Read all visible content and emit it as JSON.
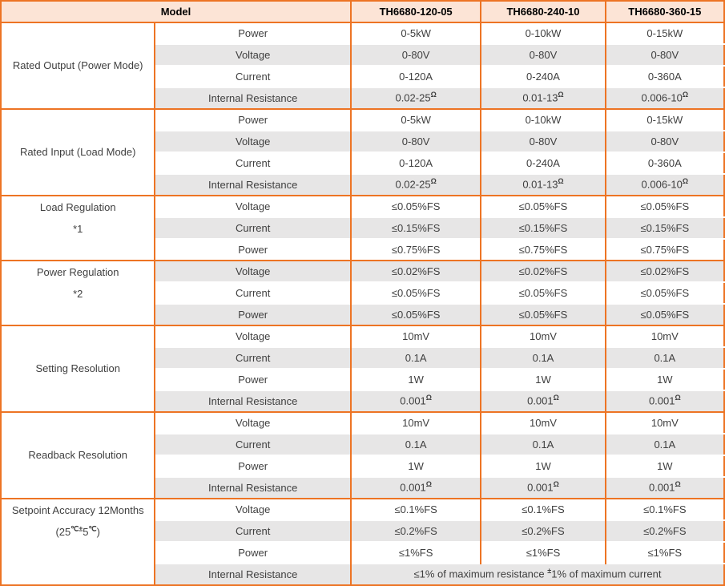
{
  "colors": {
    "border_orange": "#ed7424",
    "header_bg": "#fce4d6",
    "alt_row_bg": "#e7e6e6",
    "body_text": "#3f3f3f",
    "header_text": "#000000"
  },
  "table": {
    "header": {
      "model_label": "Model",
      "columns": [
        "TH6680-120-05",
        "TH6680-240-10",
        "TH6680-360-15"
      ]
    },
    "groups": [
      {
        "label_lines": [
          "Rated Output (Power Mode)"
        ],
        "valign": "middle",
        "rows": [
          {
            "param": "Power",
            "values": [
              "0-5kW",
              "0-10kW",
              "0-15kW"
            ]
          },
          {
            "param": "Voltage",
            "values": [
              "0-80V",
              "0-80V",
              "0-80V"
            ]
          },
          {
            "param": "Current",
            "values": [
              "0-120A",
              "0-240A",
              "0-360A"
            ]
          },
          {
            "param": "Internal Resistance",
            "values": [
              "0.02-25^{Ω}",
              "0.01-13^{Ω}",
              "0.006-10^{Ω}"
            ]
          }
        ]
      },
      {
        "label_lines": [
          "Rated Input (Load Mode)"
        ],
        "valign": "middle",
        "rows": [
          {
            "param": "Power",
            "values": [
              "0-5kW",
              "0-10kW",
              "0-15kW"
            ]
          },
          {
            "param": "Voltage",
            "values": [
              "0-80V",
              "0-80V",
              "0-80V"
            ]
          },
          {
            "param": "Current",
            "values": [
              "0-120A",
              "0-240A",
              "0-360A"
            ]
          },
          {
            "param": "Internal Resistance",
            "values": [
              "0.02-25^{Ω}",
              "0.01-13^{Ω}",
              "0.006-10^{Ω}"
            ]
          }
        ]
      },
      {
        "label_lines": [
          "Load Regulation",
          "*1"
        ],
        "valign": "top",
        "rows": [
          {
            "param": "Voltage",
            "values": [
              "≤0.05%FS",
              "≤0.05%FS",
              "≤0.05%FS"
            ]
          },
          {
            "param": "Current",
            "values": [
              "≤0.15%FS",
              "≤0.15%FS",
              "≤0.15%FS"
            ]
          },
          {
            "param": "Power",
            "values": [
              "≤0.75%FS",
              "≤0.75%FS",
              "≤0.75%FS"
            ]
          }
        ]
      },
      {
        "label_lines": [
          "Power Regulation",
          "*2"
        ],
        "valign": "top",
        "rows": [
          {
            "param": "Voltage",
            "values": [
              "≤0.02%FS",
              "≤0.02%FS",
              "≤0.02%FS"
            ]
          },
          {
            "param": "Current",
            "values": [
              "≤0.05%FS",
              "≤0.05%FS",
              "≤0.05%FS"
            ]
          },
          {
            "param": "Power",
            "values": [
              "≤0.05%FS",
              "≤0.05%FS",
              "≤0.05%FS"
            ]
          }
        ]
      },
      {
        "label_lines": [
          "Setting Resolution"
        ],
        "valign": "middle",
        "rows": [
          {
            "param": "Voltage",
            "values": [
              "10mV",
              "10mV",
              "10mV"
            ]
          },
          {
            "param": "Current",
            "values": [
              "0.1A",
              "0.1A",
              "0.1A"
            ]
          },
          {
            "param": "Power",
            "values": [
              "1W",
              "1W",
              "1W"
            ]
          },
          {
            "param": "Internal Resistance",
            "values": [
              "0.001^{Ω}",
              "0.001^{Ω}",
              "0.001^{Ω}"
            ]
          }
        ]
      },
      {
        "label_lines": [
          "Readback Resolution"
        ],
        "valign": "middle",
        "rows": [
          {
            "param": "Voltage",
            "values": [
              "10mV",
              "10mV",
              "10mV"
            ]
          },
          {
            "param": "Current",
            "values": [
              "0.1A",
              "0.1A",
              "0.1A"
            ]
          },
          {
            "param": "Power",
            "values": [
              "1W",
              "1W",
              "1W"
            ]
          },
          {
            "param": "Internal Resistance",
            "values": [
              "0.001^{Ω}",
              "0.001^{Ω}",
              "0.001^{Ω}"
            ]
          }
        ]
      },
      {
        "label_lines": [
          "Setpoint Accuracy 12Months",
          "(25^{℃±}5^{℃})"
        ],
        "valign": "top",
        "rows": [
          {
            "param": "Voltage",
            "values": [
              "≤0.1%FS",
              "≤0.1%FS",
              "≤0.1%FS"
            ]
          },
          {
            "param": "Current",
            "values": [
              "≤0.2%FS",
              "≤0.2%FS",
              "≤0.2%FS"
            ]
          },
          {
            "param": "Power",
            "values": [
              "≤1%FS",
              "≤1%FS",
              "≤1%FS"
            ]
          },
          {
            "param": "Internal Resistance",
            "merged_value": "≤1% of maximum resistance ^{±}1% of maximum current"
          }
        ]
      }
    ]
  }
}
